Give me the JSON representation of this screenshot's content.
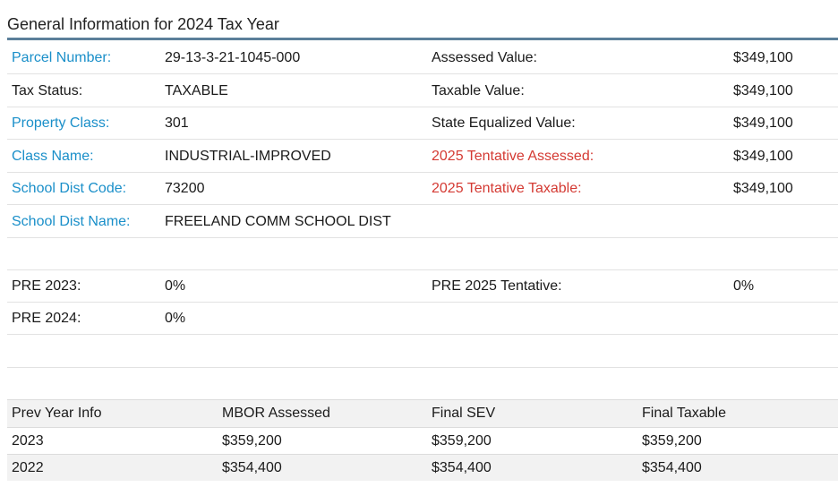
{
  "title": "General Information for 2024 Tax Year",
  "general": [
    {
      "label": "Parcel Number:",
      "value": "29-13-3-21-1045-000",
      "label2": "Assessed Value:",
      "value2": "$349,100"
    },
    {
      "label": "Tax Status:",
      "value": "TAXABLE",
      "label2": "Taxable Value:",
      "value2": "$349,100"
    },
    {
      "label": "Property Class:",
      "value": "301",
      "label2": "State Equalized Value:",
      "value2": "$349,100"
    },
    {
      "label": "Class Name:",
      "value": "INDUSTRIAL-IMPROVED",
      "label2": "2025 Tentative Assessed:",
      "value2": "$349,100"
    },
    {
      "label": "School Dist Code:",
      "value": "73200",
      "label2": "2025 Tentative Taxable:",
      "value2": "$349,100"
    },
    {
      "label": "School Dist Name:",
      "value": "FREELAND COMM SCHOOL DIST",
      "label2": "",
      "value2": ""
    }
  ],
  "pre": [
    {
      "label": "PRE 2023:",
      "value": "0%",
      "label2": "PRE 2025 Tentative:",
      "value2": "0%"
    },
    {
      "label": "PRE 2024:",
      "value": "0%",
      "label2": "",
      "value2": ""
    }
  ],
  "prev_year": {
    "headers": [
      "Prev Year Info",
      "MBOR Assessed",
      "Final SEV",
      "Final Taxable"
    ],
    "rows": [
      [
        "2023",
        "$359,200",
        "$359,200",
        "$359,200"
      ],
      [
        "2022",
        "$354,400",
        "$354,400",
        "$354,400"
      ]
    ]
  },
  "colors": {
    "link": "#1a8fc9",
    "tentative": "#d43a33",
    "rule": "#5b7f9a"
  }
}
